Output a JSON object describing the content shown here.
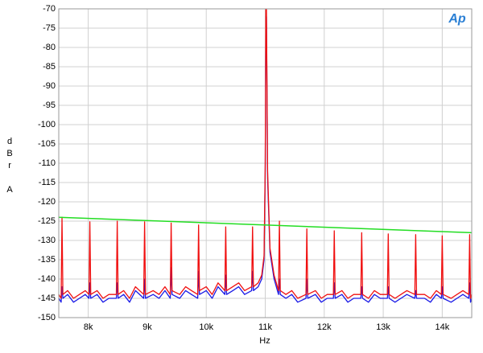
{
  "chart_data": {
    "type": "line",
    "logo": "Ap",
    "y_label": "dBr A",
    "x_label": "Hz",
    "xlim": [
      7500,
      14500
    ],
    "xticks": [
      {
        "value": 8000,
        "label": "8k"
      },
      {
        "value": 9000,
        "label": "9k"
      },
      {
        "value": 10000,
        "label": "10k"
      },
      {
        "value": 11000,
        "label": "11k"
      },
      {
        "value": 12000,
        "label": "12k"
      },
      {
        "value": 13000,
        "label": "13k"
      },
      {
        "value": 14000,
        "label": "14k"
      }
    ],
    "ylim": [
      -150,
      -70
    ],
    "yticks": [
      -150,
      -145,
      -140,
      -135,
      -130,
      -125,
      -120,
      -115,
      -110,
      -105,
      -100,
      -95,
      -90,
      -85,
      -80,
      -75,
      -70
    ],
    "grid": true,
    "x": [
      7500,
      7540,
      7555,
      7570,
      7650,
      7750,
      7850,
      7950,
      8012,
      8027,
      8042,
      8150,
      8250,
      8350,
      8476,
      8491,
      8506,
      8600,
      8700,
      8800,
      8940,
      8955,
      8970,
      9100,
      9200,
      9300,
      9390,
      9405,
      9420,
      9550,
      9650,
      9750,
      9855,
      9870,
      9885,
      10000,
      10100,
      10200,
      10315,
      10330,
      10345,
      10450,
      10550,
      10650,
      10770,
      10785,
      10800,
      10880,
      10940,
      10980,
      11000,
      11010,
      11020,
      11040,
      11080,
      11150,
      11225,
      11240,
      11255,
      11350,
      11450,
      11550,
      11690,
      11705,
      11720,
      11850,
      11950,
      12050,
      12155,
      12170,
      12185,
      12300,
      12400,
      12500,
      12620,
      12635,
      12650,
      12750,
      12850,
      12950,
      13070,
      13085,
      13100,
      13200,
      13300,
      13400,
      13535,
      13550,
      13565,
      13700,
      13800,
      13900,
      13985,
      14000,
      14015,
      14150,
      14250,
      14350,
      14450,
      14465,
      14480,
      14500
    ],
    "series": [
      {
        "color": "#1a1ae6",
        "values": [
          -145,
          -146,
          -142,
          -145,
          -144,
          -146,
          -145,
          -144,
          -145,
          -141,
          -145,
          -144,
          -146,
          -145,
          -145,
          -141,
          -145,
          -144,
          -146,
          -143,
          -145,
          -140,
          -145,
          -144,
          -145,
          -143,
          -145,
          -137,
          -144,
          -145,
          -143,
          -144,
          -145,
          -138,
          -144,
          -143,
          -145,
          -142,
          -144,
          -139,
          -144,
          -143,
          -142,
          -144,
          -143,
          -138,
          -143,
          -142,
          -140,
          -135,
          -112,
          -72,
          -72,
          -114,
          -133,
          -140,
          -144,
          -140,
          -144,
          -145,
          -144,
          -146,
          -145,
          -140,
          -145,
          -144,
          -146,
          -145,
          -145,
          -141,
          -145,
          -144,
          -146,
          -145,
          -145,
          -142,
          -145,
          -146,
          -144,
          -145,
          -145,
          -142,
          -145,
          -146,
          -145,
          -144,
          -145,
          -143,
          -145,
          -145,
          -146,
          -144,
          -145,
          -142,
          -145,
          -146,
          -145,
          -144,
          -145,
          -141,
          -146,
          -145
        ]
      },
      {
        "color": "#f01010",
        "values": [
          -144,
          -145,
          -124,
          -144,
          -143,
          -145,
          -144,
          -143,
          -144,
          -125.2,
          -144,
          -143,
          -145,
          -144,
          -144,
          -125,
          -144,
          -143,
          -145,
          -142,
          -144,
          -125.2,
          -144,
          -143,
          -144,
          -142,
          -144,
          -125.5,
          -143,
          -144,
          -142,
          -143,
          -144,
          -126,
          -143,
          -142,
          -144,
          -141,
          -143,
          -126.5,
          -143,
          -142,
          -141,
          -143,
          -142,
          -126.5,
          -142,
          -141,
          -139,
          -134,
          -110,
          -70,
          -70,
          -112,
          -132,
          -139,
          -143,
          -125,
          -143,
          -144,
          -143,
          -145,
          -144,
          -127,
          -144,
          -143,
          -145,
          -144,
          -144,
          -127.5,
          -144,
          -143,
          -145,
          -144,
          -144,
          -128,
          -144,
          -145,
          -143,
          -144,
          -144,
          -128.3,
          -144,
          -145,
          -144,
          -143,
          -144,
          -128.5,
          -144,
          -144,
          -145,
          -143,
          -144,
          -128.8,
          -144,
          -145,
          -144,
          -143,
          -144,
          -128.5,
          -145,
          -144
        ]
      }
    ],
    "reference_line": {
      "color": "#22dd22",
      "x": [
        7500,
        14500
      ],
      "values": [
        -124,
        -128
      ]
    }
  }
}
